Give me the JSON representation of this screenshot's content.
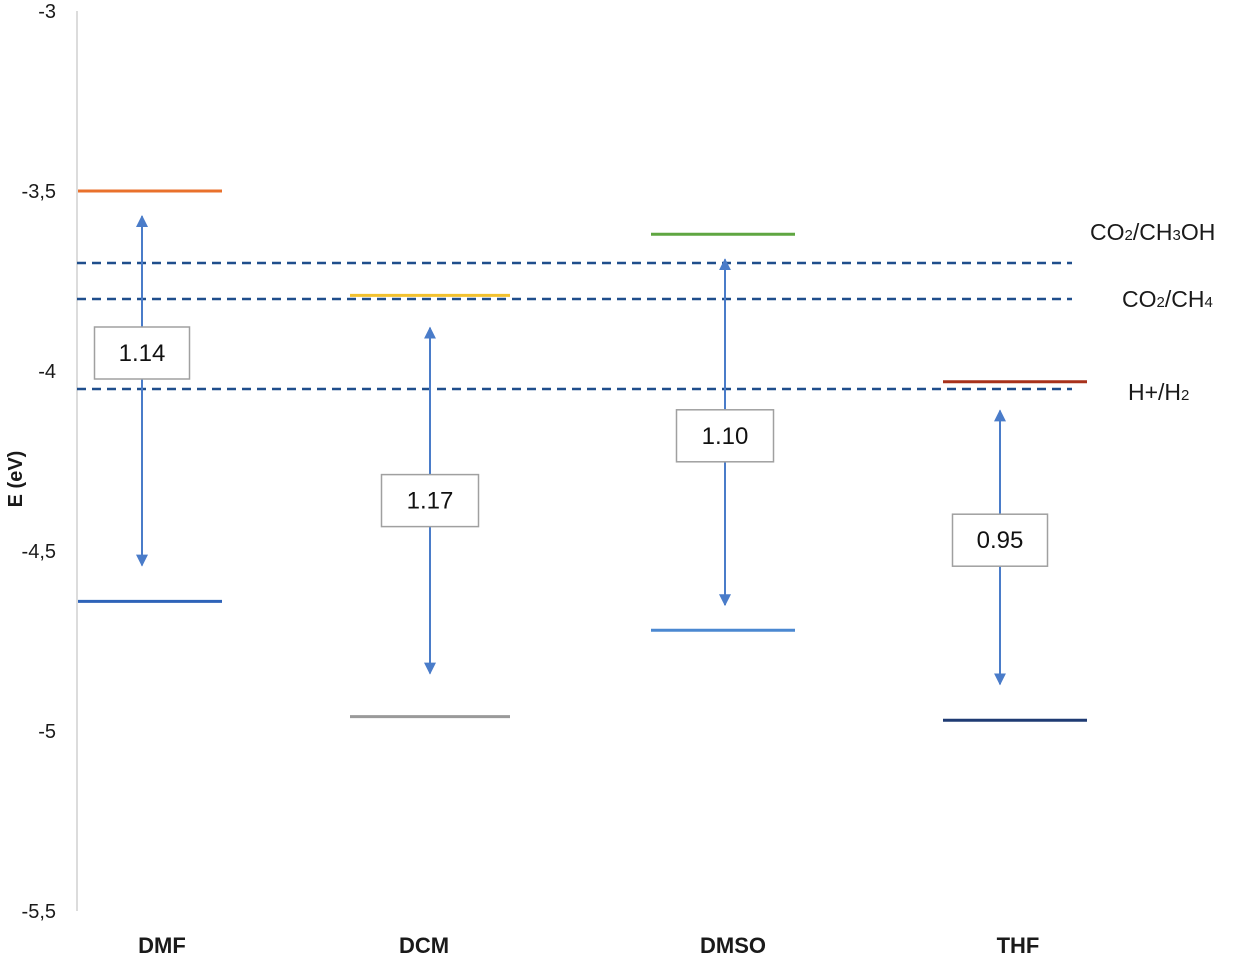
{
  "chart_data": {
    "type": "other",
    "title": "",
    "ylabel": "E (eV)",
    "ylim": [
      -5.5,
      -3
    ],
    "yticks": [
      -3,
      -3.5,
      -4,
      -4.5,
      -5,
      -5.5
    ],
    "ytick_labels": [
      "-3",
      "-3,5",
      "-4",
      "-4,5",
      "-5",
      "-5,5"
    ],
    "categories": [
      "DMF",
      "DCM",
      "DMSO",
      "THF"
    ],
    "levels": [
      {
        "category": "DMF",
        "upper": -3.5,
        "lower": -4.64,
        "upper_color": "#e9712c",
        "lower_color": "#2e63b8",
        "gap": "1.14",
        "arrow_top": -3.57,
        "arrow_bottom": -4.54,
        "gap_label_y": -3.95
      },
      {
        "category": "DCM",
        "upper": -3.79,
        "lower": -4.96,
        "upper_color": "#f2c12e",
        "lower_color": "#9a9a9a",
        "gap": "1.17",
        "arrow_top": -3.88,
        "arrow_bottom": -4.84,
        "gap_label_y": -4.36
      },
      {
        "category": "DMSO",
        "upper": -3.62,
        "lower": -4.72,
        "upper_color": "#5fa641",
        "lower_color": "#4b88d1",
        "gap": "1.10",
        "arrow_top": -3.69,
        "arrow_bottom": -4.65,
        "gap_label_y": -4.18
      },
      {
        "category": "THF",
        "upper": -4.03,
        "lower": -4.97,
        "upper_color": "#a8321c",
        "lower_color": "#1f3b73",
        "gap": "0.95",
        "arrow_top": -4.11,
        "arrow_bottom": -4.87,
        "gap_label_y": -4.47
      }
    ],
    "reference_lines": [
      {
        "value": -3.7,
        "label_main": "CO",
        "label_parts": [
          [
            "CO",
            ""
          ],
          [
            "2",
            "sub"
          ],
          [
            "/CH",
            ""
          ],
          [
            "3",
            "sub"
          ],
          [
            "OH",
            ""
          ]
        ]
      },
      {
        "value": -3.8,
        "label_parts": [
          [
            "CO",
            ""
          ],
          [
            "2",
            "sub"
          ],
          [
            "/CH",
            ""
          ],
          [
            "4",
            "sub"
          ]
        ]
      },
      {
        "value": -4.05,
        "label_parts": [
          [
            "H+/H",
            ""
          ],
          [
            "2",
            "sub"
          ]
        ]
      }
    ],
    "reference_color": "#1f4e8c",
    "arrow_color": "#4a7cc9"
  }
}
